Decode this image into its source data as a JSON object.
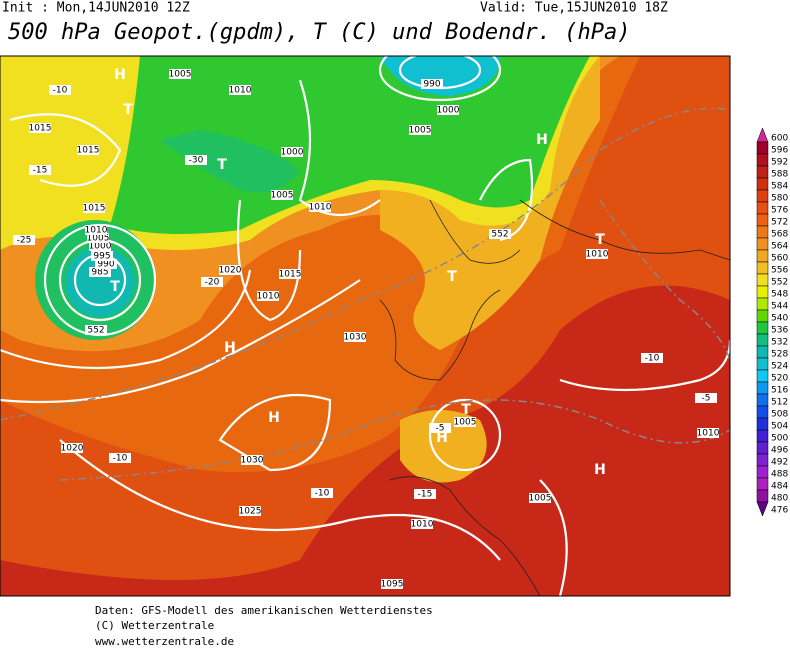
{
  "header": {
    "init": "Init : Mon,14JUN2010 12Z",
    "valid": "Valid: Tue,15JUN2010 18Z",
    "title": "500 hPa Geopot.(gpdm), T (C) und Bodendr. (hPa)"
  },
  "colorbar": {
    "values": [
      600,
      596,
      592,
      588,
      584,
      580,
      576,
      572,
      568,
      564,
      560,
      556,
      552,
      548,
      544,
      540,
      536,
      532,
      528,
      524,
      520,
      516,
      512,
      508,
      504,
      500,
      496,
      492,
      488,
      484,
      480,
      476
    ],
    "colors": [
      "#d02890",
      "#a00028",
      "#b01020",
      "#c02018",
      "#d03010",
      "#e04010",
      "#e85010",
      "#f06010",
      "#f07818",
      "#f09020",
      "#f0a820",
      "#f0c020",
      "#f0e020",
      "#e8f000",
      "#b0e800",
      "#60d800",
      "#20c840",
      "#10c080",
      "#10b8b0",
      "#10c0d0",
      "#10c8f0",
      "#1098f0",
      "#1070f0",
      "#1050e8",
      "#2030e0",
      "#4020d8",
      "#6020d0",
      "#8020d0",
      "#a020d0",
      "#b020c0",
      "#9010a0",
      "#600080"
    ]
  },
  "map_labels": [
    "H",
    "T",
    "1005",
    "1010",
    "990",
    "1000",
    "1005",
    "1015",
    "T",
    "1015",
    "1000",
    "1005",
    "1010",
    "985",
    "990",
    "995",
    "1000",
    "1005",
    "1010",
    "1015",
    "T",
    "1020",
    "1015",
    "1010",
    "1030",
    "H",
    "H",
    "1030",
    "1025",
    "1010",
    "-10",
    "-15",
    "-20",
    "-25",
    "-30",
    "-10",
    "-10",
    "-15",
    "1005",
    "T",
    "H",
    "-5",
    "T",
    "1010",
    "1005",
    "1095",
    "1020",
    "H",
    "T",
    "H",
    "-10",
    "-5",
    "1010",
    "552",
    "552"
  ],
  "footer": {
    "source": "Daten: GFS-Modell des amerikanischen Wetterdienstes",
    "copyright": "(C) Wetterzentrale",
    "url": "www.wetterzentrale.de"
  }
}
